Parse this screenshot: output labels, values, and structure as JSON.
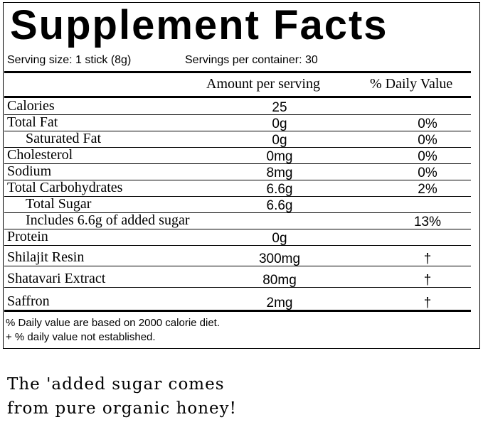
{
  "header": {
    "title": "Supplement Facts",
    "serving_size": "Serving size: 1 stick (8g)",
    "servings_per_container": "Servings per container: 30"
  },
  "table": {
    "columns": [
      "Amount per serving",
      "% Daily Value"
    ],
    "rows": [
      {
        "name": "Calories",
        "amount": "25"
      },
      {
        "name": "Total Fat",
        "amount": "0g",
        "daily_value": "0%"
      },
      {
        "name": "Saturated Fat",
        "amount": "0g",
        "daily_value": "0%"
      },
      {
        "name": "Cholesterol",
        "amount": "0mg",
        "daily_value": "0%"
      },
      {
        "name": "Sodium",
        "amount": "8mg",
        "daily_value": "0%"
      },
      {
        "name": "Total Carbohydrates",
        "amount": "6.6g",
        "daily_value": "2%"
      },
      {
        "name": "Total Sugar",
        "amount": "6.6g"
      },
      {
        "name": "Includes 6.6g of added sugar",
        "daily_value": "13%"
      },
      {
        "name": "Protein",
        "amount": "0g"
      },
      {
        "name": "Shilajit Resin",
        "amount": "300mg",
        "daily_value": "†"
      },
      {
        "name": "Shatavari Extract",
        "amount": "80mg",
        "daily_value": "†"
      },
      {
        "name": "Saffron",
        "amount": "2mg",
        "daily_value": "†"
      }
    ]
  },
  "footnotes": [
    "% Daily value are based on 2000 calorie diet.",
    "+ % daily value not established."
  ],
  "caption": [
    "The 'added sugar comes",
    "from pure organic honey!"
  ]
}
